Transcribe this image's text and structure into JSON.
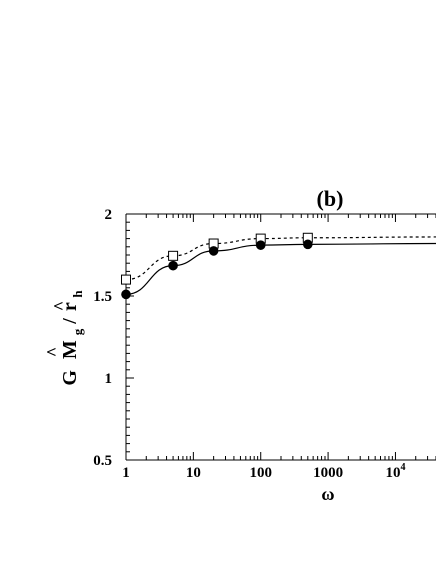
{
  "chart_data": {
    "type": "line",
    "panel_label": "(b)",
    "xlabel": "ω",
    "ylabel_parts": {
      "g1": "G",
      "g2": "M",
      "sub_g": "g",
      "g3": " / ",
      "g4": "r",
      "sub_h": "h",
      "hat": "^"
    },
    "x_scale": "log",
    "xlim": [
      1,
      40000
    ],
    "ylim": [
      0.5,
      2.0
    ],
    "x_ticks": [
      {
        "value": 1,
        "label": "1"
      },
      {
        "value": 10,
        "label": "10"
      },
      {
        "value": 100,
        "label": "100"
      },
      {
        "value": 1000,
        "label": "1000"
      },
      {
        "value": 10000,
        "label": "10",
        "sup": "4"
      }
    ],
    "y_ticks": [
      {
        "value": 0.5,
        "label": "0.5"
      },
      {
        "value": 1.0,
        "label": "1"
      },
      {
        "value": 1.5,
        "label": "1.5"
      },
      {
        "value": 2.0,
        "label": "2"
      }
    ],
    "series": [
      {
        "style": "dashed",
        "marker": "open-square",
        "curve_x": [
          1,
          5,
          20,
          100,
          500,
          40000
        ],
        "curve_y": [
          1.6,
          1.745,
          1.82,
          1.85,
          1.855,
          1.86
        ],
        "markers_x": [
          1,
          5,
          20,
          100,
          500
        ],
        "markers_y": [
          1.6,
          1.745,
          1.82,
          1.85,
          1.855
        ]
      },
      {
        "style": "solid",
        "marker": "filled-circle",
        "curve_x": [
          1,
          5,
          20,
          100,
          500,
          40000
        ],
        "curve_y": [
          1.51,
          1.685,
          1.775,
          1.81,
          1.815,
          1.82
        ],
        "markers_x": [
          1,
          5,
          20,
          100,
          500
        ],
        "markers_y": [
          1.51,
          1.685,
          1.775,
          1.81,
          1.815
        ]
      }
    ],
    "grid": false,
    "legend": "none"
  }
}
